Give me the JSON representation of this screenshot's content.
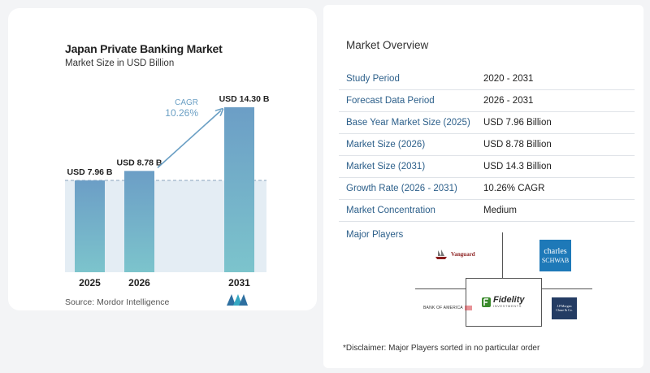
{
  "header": {
    "title": "Japan Private Banking Market",
    "subtitle": "Market Size in USD Billion"
  },
  "chart_data": {
    "type": "bar",
    "categories": [
      "2025",
      "2026",
      "2031"
    ],
    "values": [
      7.96,
      8.78,
      14.3
    ],
    "value_labels": [
      "USD 7.96 B",
      "USD 8.78 B",
      "USD 14.30 B"
    ],
    "cagr_label": "CAGR",
    "cagr_value": "10.26%",
    "title": "Japan Private Banking Market",
    "subtitle": "Market Size in USD Billion",
    "xlabel": "",
    "ylabel": "",
    "grid": false,
    "colors": {
      "bar_top": "#6c9ec6",
      "bar_bottom": "#7cc4cc",
      "arrow": "#6a9fc4",
      "band": "#e4edf4"
    }
  },
  "source": "Source:  Mordor Intelligence",
  "overview": {
    "title": "Market Overview",
    "rows": [
      {
        "label": "Study Period",
        "value": "2020 - 2031"
      },
      {
        "label": "Forecast Data Period",
        "value": "2026 - 2031"
      },
      {
        "label": "Base Year Market Size (2025)",
        "value": "USD 7.96 Billion"
      },
      {
        "label": "Market Size (2026)",
        "value": "USD 8.78 Billion"
      },
      {
        "label": "Market Size (2031)",
        "value": "USD 14.3 Billion"
      },
      {
        "label": "Growth Rate (2026 - 2031)",
        "value": "10.26% CAGR"
      },
      {
        "label": "Market Concentration",
        "value": "Medium"
      }
    ]
  },
  "players": {
    "title": "Major Players",
    "vanguard": "Vanguard",
    "schwab_line1": "charles",
    "schwab_line2": "SCHWAB",
    "fidelity": "Fidelity",
    "fidelity_sub": "INVESTMENTS",
    "bofa": "BANK OF AMERICA",
    "jpm_line1": "J.P.Morgan",
    "jpm_line2": "Chase & Co."
  },
  "disclaimer": "*Disclaimer: Major Players sorted in no particular order"
}
